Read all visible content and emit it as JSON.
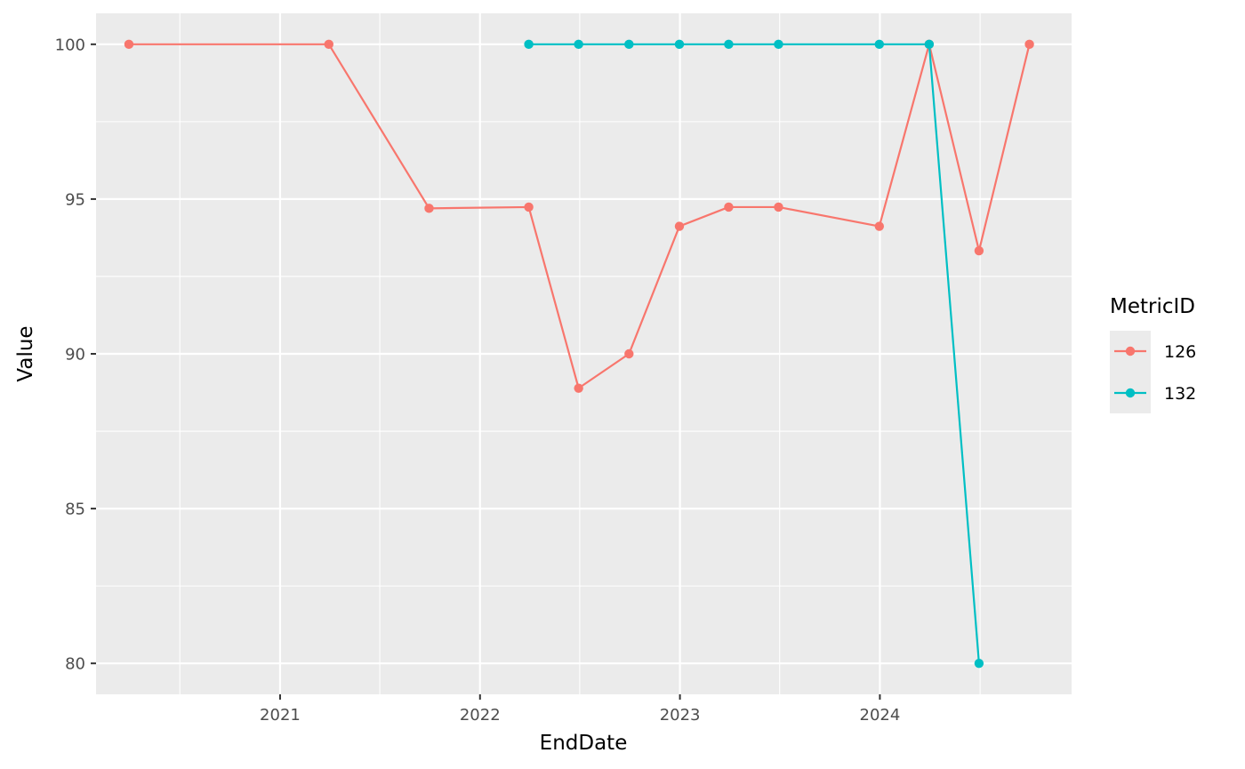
{
  "chart_data": {
    "type": "line",
    "title": "",
    "xlabel": "EndDate",
    "ylabel": "Value",
    "x_tick_labels": [
      "2021",
      "2022",
      "2023",
      "2024"
    ],
    "y_tick_labels": [
      "80",
      "85",
      "90",
      "95",
      "100"
    ],
    "xlim": [
      "2020-01-31",
      "2024-12-16"
    ],
    "ylim": [
      79.0,
      101.0
    ],
    "grid": true,
    "legend": {
      "title": "MetricID",
      "position": "right"
    },
    "series": [
      {
        "name": "126",
        "color": "#F8766D",
        "points": [
          {
            "x": "2020-03-31",
            "y": 100
          },
          {
            "x": "2021-03-31",
            "y": 100
          },
          {
            "x": "2021-09-30",
            "y": 94.7
          },
          {
            "x": "2022-03-31",
            "y": 94.74
          },
          {
            "x": "2022-06-30",
            "y": 88.89
          },
          {
            "x": "2022-09-30",
            "y": 90.0
          },
          {
            "x": "2022-12-31",
            "y": 94.12
          },
          {
            "x": "2023-03-31",
            "y": 94.74
          },
          {
            "x": "2023-06-30",
            "y": 94.74
          },
          {
            "x": "2023-12-31",
            "y": 94.12
          },
          {
            "x": "2024-03-31",
            "y": 100
          },
          {
            "x": "2024-06-30",
            "y": 93.33
          },
          {
            "x": "2024-09-30",
            "y": 100
          }
        ]
      },
      {
        "name": "132",
        "color": "#00BFC4",
        "points": [
          {
            "x": "2022-03-31",
            "y": 100
          },
          {
            "x": "2022-06-30",
            "y": 100
          },
          {
            "x": "2022-09-30",
            "y": 100
          },
          {
            "x": "2022-12-31",
            "y": 100
          },
          {
            "x": "2023-03-31",
            "y": 100
          },
          {
            "x": "2023-06-30",
            "y": 100
          },
          {
            "x": "2023-12-31",
            "y": 100
          },
          {
            "x": "2024-03-31",
            "y": 100
          },
          {
            "x": "2024-06-30",
            "y": 80
          }
        ]
      }
    ],
    "panel_background": "#EBEBEB",
    "grid_color": "#FFFFFF"
  }
}
